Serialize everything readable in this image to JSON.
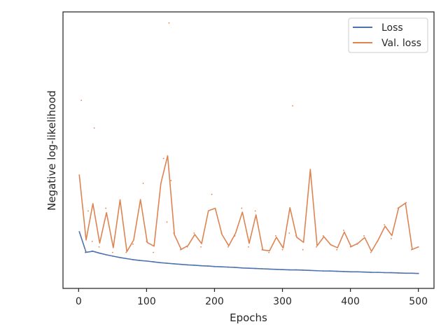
{
  "chart_data": {
    "type": "line",
    "title": "",
    "xlabel": "Epochs",
    "ylabel": "Negative log-likelihood",
    "xlim": [
      -23,
      523
    ],
    "ylim": [
      0,
      100
    ],
    "y_tick_labels_shown": false,
    "grid": false,
    "legend": "top-right",
    "x_ticks": [
      0,
      100,
      200,
      300,
      400,
      500
    ],
    "x_tick_labels": [
      "0",
      "100",
      "200",
      "300",
      "400",
      "500"
    ],
    "x_step": 10,
    "series": [
      {
        "name": "Loss",
        "color": "#4c72b0",
        "x": [
          1,
          10,
          20,
          30,
          40,
          50,
          60,
          70,
          80,
          90,
          100,
          110,
          120,
          130,
          140,
          150,
          160,
          170,
          180,
          190,
          200,
          210,
          220,
          230,
          240,
          250,
          260,
          270,
          280,
          290,
          300,
          310,
          320,
          330,
          340,
          350,
          360,
          370,
          380,
          390,
          400,
          410,
          420,
          430,
          440,
          450,
          460,
          470,
          480,
          490,
          500
        ],
        "values": [
          20.5,
          13.0,
          13.5,
          12.8,
          12.2,
          11.7,
          11.2,
          10.8,
          10.4,
          10.1,
          9.9,
          9.6,
          9.3,
          9.1,
          8.9,
          8.7,
          8.5,
          8.4,
          8.2,
          8.1,
          7.9,
          7.8,
          7.7,
          7.6,
          7.4,
          7.3,
          7.2,
          7.1,
          7.0,
          6.9,
          6.8,
          6.7,
          6.7,
          6.6,
          6.5,
          6.4,
          6.3,
          6.3,
          6.2,
          6.1,
          6.0,
          6.0,
          5.9,
          5.8,
          5.8,
          5.7,
          5.7,
          5.6,
          5.5,
          5.5,
          5.4
        ]
      },
      {
        "name": "Val. loss",
        "color": "#dd8452",
        "x": [
          1,
          4,
          10,
          14,
          20,
          23,
          30,
          40,
          50,
          61,
          70,
          80,
          95,
          100,
          110,
          125,
          130,
          133,
          136,
          140,
          150,
          160,
          170,
          180,
          196,
          210,
          220,
          230,
          240,
          250,
          260,
          270,
          280,
          290,
          300,
          310,
          315,
          320,
          330,
          341,
          350,
          360,
          370,
          380,
          390,
          400,
          410,
          420,
          430,
          440,
          450,
          460,
          470,
          482,
          490,
          500
        ],
        "values": [
          41,
          68,
          14,
          28,
          17,
          58,
          15,
          29,
          13,
          32,
          13,
          16,
          38,
          17,
          13,
          47,
          24,
          96,
          39,
          20,
          14,
          15,
          20,
          15,
          34,
          20,
          15,
          19,
          29,
          15,
          28,
          14,
          13,
          19,
          14,
          20,
          66,
          19,
          14,
          43,
          15,
          19,
          16,
          14,
          21,
          15,
          16,
          19,
          13,
          17,
          23,
          18,
          29,
          31,
          14,
          15
        ]
      }
    ]
  }
}
